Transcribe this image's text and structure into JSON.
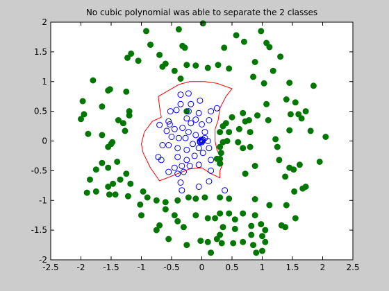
{
  "chart_data": {
    "type": "scatter",
    "title": "No cubic polynomial was able to separate the 2 classes",
    "xlabel": "",
    "ylabel": "",
    "xlim": [
      -2.5,
      2.5
    ],
    "ylim": [
      -2,
      2
    ],
    "x_ticks": [
      -2.5,
      -2,
      -1.5,
      -1,
      -0.5,
      0,
      0.5,
      1,
      1.5,
      2,
      2.5
    ],
    "y_ticks": [
      -2,
      -1.5,
      -1,
      -0.5,
      0,
      0.5,
      1,
      1.5,
      2
    ],
    "x_tick_labels": [
      "-2.5",
      "-2",
      "-1.5",
      "-1",
      "-0.5",
      "0",
      "0.5",
      "1",
      "1.5",
      "2",
      "2.5"
    ],
    "y_tick_labels": [
      "-2",
      "-1.5",
      "-1",
      "-0.5",
      "0",
      "0.5",
      "1",
      "1.5",
      "2"
    ],
    "grid": false,
    "colors": {
      "class_inner": "#0000ff",
      "class_outer": "#007700",
      "boundary": "#ff0000",
      "figure_bg": "#cccccc",
      "axes_bg": "#ffffff"
    },
    "series": [
      {
        "marker": "open-circle",
        "points": [
          [
            -0.03,
            0.0
          ],
          [
            0.0,
            0.01
          ],
          [
            -0.02,
            -0.01
          ],
          [
            0.01,
            0.0
          ],
          [
            -0.01,
            0.02
          ],
          [
            0.0,
            -0.02
          ],
          [
            0.02,
            0.02
          ],
          [
            -0.03,
            -0.02
          ],
          [
            -0.35,
            0.78
          ],
          [
            -0.22,
            0.8
          ],
          [
            -0.03,
            0.68
          ],
          [
            -0.18,
            0.62
          ],
          [
            -0.35,
            0.62
          ],
          [
            -0.22,
            0.5
          ],
          [
            -0.42,
            0.52
          ],
          [
            -0.52,
            0.5
          ],
          [
            -0.05,
            0.47
          ],
          [
            0.15,
            0.5
          ],
          [
            0.25,
            0.55
          ],
          [
            0.12,
            0.35
          ],
          [
            -0.1,
            0.36
          ],
          [
            -0.25,
            0.38
          ],
          [
            -0.55,
            0.33
          ],
          [
            -0.7,
            0.27
          ],
          [
            -0.53,
            0.28
          ],
          [
            -0.32,
            0.22
          ],
          [
            -0.18,
            0.3
          ],
          [
            0.0,
            0.28
          ],
          [
            0.05,
            0.15
          ],
          [
            -0.1,
            0.1
          ],
          [
            -0.22,
            0.15
          ],
          [
            -0.45,
            0.2
          ],
          [
            -0.58,
            0.17
          ],
          [
            -0.5,
            0.07
          ],
          [
            -0.38,
            0.05
          ],
          [
            -0.27,
            0.05
          ],
          [
            -0.15,
            -0.05
          ],
          [
            0.05,
            0.05
          ],
          [
            0.1,
            0.0
          ],
          [
            0.12,
            -0.12
          ],
          [
            -0.05,
            -0.12
          ],
          [
            -0.25,
            -0.15
          ],
          [
            -0.4,
            -0.12
          ],
          [
            -0.55,
            -0.07
          ],
          [
            -0.65,
            -0.07
          ],
          [
            -0.72,
            -0.27
          ],
          [
            -0.67,
            -0.32
          ],
          [
            -0.4,
            -0.27
          ],
          [
            -0.25,
            -0.32
          ],
          [
            -0.12,
            -0.25
          ],
          [
            0.02,
            -0.2
          ],
          [
            0.15,
            -0.32
          ],
          [
            -0.05,
            -0.4
          ],
          [
            -0.2,
            -0.42
          ],
          [
            -0.33,
            -0.42
          ],
          [
            -0.45,
            -0.45
          ],
          [
            -0.55,
            -0.52
          ],
          [
            -0.4,
            -0.55
          ],
          [
            -0.3,
            -0.52
          ],
          [
            0.15,
            -0.5
          ],
          [
            -0.35,
            -0.7
          ],
          [
            -0.05,
            -0.77
          ],
          [
            0.12,
            -0.68
          ],
          [
            -0.33,
            -0.83
          ],
          [
            0.38,
            -0.83
          ]
        ]
      },
      {
        "marker": "filled-circle",
        "points": [
          [
            0.02,
            1.98
          ],
          [
            -0.38,
            1.88
          ],
          [
            -0.92,
            1.85
          ],
          [
            0.57,
            1.78
          ],
          [
            0.98,
            1.85
          ],
          [
            1.07,
            1.65
          ],
          [
            1.12,
            1.58
          ],
          [
            0.7,
            1.67
          ],
          [
            0.37,
            1.57
          ],
          [
            -0.32,
            1.6
          ],
          [
            -0.28,
            1.57
          ],
          [
            -0.85,
            1.62
          ],
          [
            -1.17,
            1.47
          ],
          [
            -1.23,
            1.4
          ],
          [
            -1.05,
            1.35
          ],
          [
            -0.7,
            1.45
          ],
          [
            -0.6,
            1.3
          ],
          [
            -0.65,
            1.25
          ],
          [
            -0.25,
            1.28
          ],
          [
            -0.1,
            1.27
          ],
          [
            0.1,
            1.23
          ],
          [
            0.27,
            1.28
          ],
          [
            0.45,
            1.22
          ],
          [
            0.88,
            1.33
          ],
          [
            1.3,
            1.42
          ],
          [
            1.18,
            1.18
          ],
          [
            -0.45,
            1.18
          ],
          [
            0.85,
            1.08
          ],
          [
            1.03,
            0.97
          ],
          [
            1.45,
            0.98
          ],
          [
            1.85,
            0.93
          ],
          [
            -1.8,
            1.02
          ],
          [
            -1.52,
            0.87
          ],
          [
            -1.55,
            0.85
          ],
          [
            -1.25,
            0.83
          ],
          [
            -0.35,
            1.05
          ],
          [
            -1.97,
            0.67
          ],
          [
            -1.65,
            0.58
          ],
          [
            -1.2,
            0.5
          ],
          [
            -1.2,
            0.43
          ],
          [
            -2.0,
            0.37
          ],
          [
            -1.38,
            0.35
          ],
          [
            -1.3,
            0.3
          ],
          [
            -1.88,
            0.12
          ],
          [
            -1.95,
            0.45
          ],
          [
            -1.65,
            0.1
          ],
          [
            -1.27,
            0.17
          ],
          [
            -1.48,
            -0.02
          ],
          [
            -1.5,
            -0.05
          ],
          [
            -1.55,
            -0.1
          ],
          [
            0.5,
            0.4
          ],
          [
            0.4,
            0.3
          ],
          [
            0.35,
            0.25
          ],
          [
            0.3,
            0.15
          ],
          [
            0.45,
            0.15
          ],
          [
            0.42,
            0.0
          ],
          [
            0.35,
            -0.02
          ],
          [
            0.3,
            -0.1
          ],
          [
            0.32,
            -0.2
          ],
          [
            0.3,
            -0.3
          ],
          [
            0.25,
            -0.3
          ],
          [
            0.3,
            -0.38
          ],
          [
            0.68,
            0.47
          ],
          [
            0.78,
            0.35
          ],
          [
            0.72,
            0.33
          ],
          [
            0.8,
            0.15
          ],
          [
            0.62,
            0.2
          ],
          [
            0.6,
            -0.02
          ],
          [
            0.8,
            -0.1
          ],
          [
            0.68,
            -0.12
          ],
          [
            0.88,
            -0.42
          ],
          [
            0.72,
            -0.55
          ],
          [
            0.92,
            0.43
          ],
          [
            1.07,
            0.62
          ],
          [
            1.1,
            0.35
          ],
          [
            1.22,
            0.03
          ],
          [
            1.45,
            0.18
          ],
          [
            1.25,
            -0.1
          ],
          [
            1.28,
            -0.32
          ],
          [
            1.45,
            -0.45
          ],
          [
            1.52,
            -0.48
          ],
          [
            1.38,
            -0.6
          ],
          [
            1.53,
            -0.85
          ],
          [
            1.67,
            -0.8
          ],
          [
            1.72,
            -0.77
          ],
          [
            1.62,
            -0.4
          ],
          [
            1.95,
            -0.35
          ],
          [
            2.05,
            0.07
          ],
          [
            1.8,
            0.17
          ],
          [
            1.65,
            0.38
          ],
          [
            1.55,
            0.65
          ],
          [
            1.4,
            0.7
          ],
          [
            1.47,
            0.45
          ],
          [
            1.6,
            0.45
          ],
          [
            1.72,
            0.5
          ],
          [
            -0.25,
            0.5
          ],
          [
            -1.85,
            -0.65
          ],
          [
            -1.75,
            -0.48
          ],
          [
            -1.65,
            -0.37
          ],
          [
            -1.55,
            -0.45
          ],
          [
            -1.4,
            -0.35
          ],
          [
            -1.35,
            -0.65
          ],
          [
            -1.47,
            -0.72
          ],
          [
            -1.55,
            -0.77
          ],
          [
            -1.25,
            -0.55
          ],
          [
            -1.18,
            -0.72
          ],
          [
            -1.43,
            -0.9
          ],
          [
            -1.53,
            -0.9
          ],
          [
            -1.75,
            -0.85
          ],
          [
            -1.9,
            -0.87
          ],
          [
            -1.22,
            -0.93
          ],
          [
            -0.97,
            -0.85
          ],
          [
            -0.9,
            -0.95
          ],
          [
            -1.02,
            -1.07
          ],
          [
            -0.75,
            -1.0
          ],
          [
            -0.6,
            -1.03
          ],
          [
            -0.4,
            -1.0
          ],
          [
            -0.22,
            -0.95
          ],
          [
            -0.1,
            -0.97
          ],
          [
            0.05,
            -0.95
          ],
          [
            0.3,
            -0.95
          ],
          [
            0.45,
            -0.97
          ],
          [
            0.88,
            -0.98
          ],
          [
            1.12,
            -1.08
          ],
          [
            1.4,
            -1.08
          ],
          [
            1.55,
            -1.3
          ],
          [
            1.38,
            -1.45
          ],
          [
            1.32,
            -1.42
          ],
          [
            1.05,
            -1.5
          ],
          [
            0.98,
            -1.4
          ],
          [
            0.82,
            -1.43
          ],
          [
            0.55,
            -1.48
          ],
          [
            0.35,
            -1.45
          ],
          [
            0.3,
            -1.58
          ],
          [
            0.25,
            -1.65
          ],
          [
            0.33,
            -1.72
          ],
          [
            0.52,
            -1.72
          ],
          [
            0.68,
            -1.7
          ],
          [
            0.85,
            -1.75
          ],
          [
            0.82,
            -1.58
          ],
          [
            0.9,
            -1.88
          ],
          [
            1.0,
            -1.85
          ],
          [
            0.15,
            -1.88
          ],
          [
            -0.02,
            -1.68
          ],
          [
            -0.25,
            -1.75
          ],
          [
            -0.3,
            -1.45
          ],
          [
            -0.45,
            -1.25
          ],
          [
            -0.6,
            -1.15
          ],
          [
            -0.7,
            -1.42
          ],
          [
            -0.75,
            -1.5
          ],
          [
            -1.0,
            -1.25
          ],
          [
            -0.4,
            -1.35
          ],
          [
            -0.1,
            -1.25
          ],
          [
            0.1,
            -1.3
          ],
          [
            0.22,
            -1.3
          ],
          [
            0.3,
            -1.22
          ],
          [
            0.45,
            -1.22
          ],
          [
            0.55,
            -1.32
          ],
          [
            0.68,
            -1.22
          ],
          [
            0.88,
            -1.25
          ],
          [
            -0.55,
            -1.65
          ],
          [
            0.1,
            -1.7
          ],
          [
            1.0,
            -1.6
          ],
          [
            1.05,
            -1.7
          ]
        ]
      }
    ],
    "boundary": [
      [
        -0.7,
        -0.67
      ],
      [
        -0.85,
        -0.45
      ],
      [
        -0.97,
        -0.2
      ],
      [
        -1.0,
        -0.05
      ],
      [
        -0.95,
        0.15
      ],
      [
        -0.82,
        0.33
      ],
      [
        -0.67,
        0.4
      ],
      [
        -0.7,
        0.58
      ],
      [
        -0.72,
        0.75
      ],
      [
        -0.55,
        0.85
      ],
      [
        -0.38,
        0.95
      ],
      [
        -0.2,
        1.0
      ],
      [
        0.05,
        1.0
      ],
      [
        0.25,
        0.97
      ],
      [
        0.5,
        0.88
      ],
      [
        0.4,
        0.75
      ],
      [
        0.3,
        0.55
      ],
      [
        0.27,
        0.35
      ],
      [
        0.22,
        0.2
      ],
      [
        0.22,
        0.0
      ],
      [
        0.25,
        -0.15
      ],
      [
        0.3,
        -0.25
      ],
      [
        0.35,
        -0.38
      ],
      [
        0.3,
        -0.5
      ],
      [
        0.3,
        -0.62
      ],
      [
        0.15,
        -0.55
      ],
      [
        0.0,
        -0.45
      ],
      [
        -0.2,
        -0.47
      ],
      [
        -0.4,
        -0.55
      ]
    ]
  }
}
